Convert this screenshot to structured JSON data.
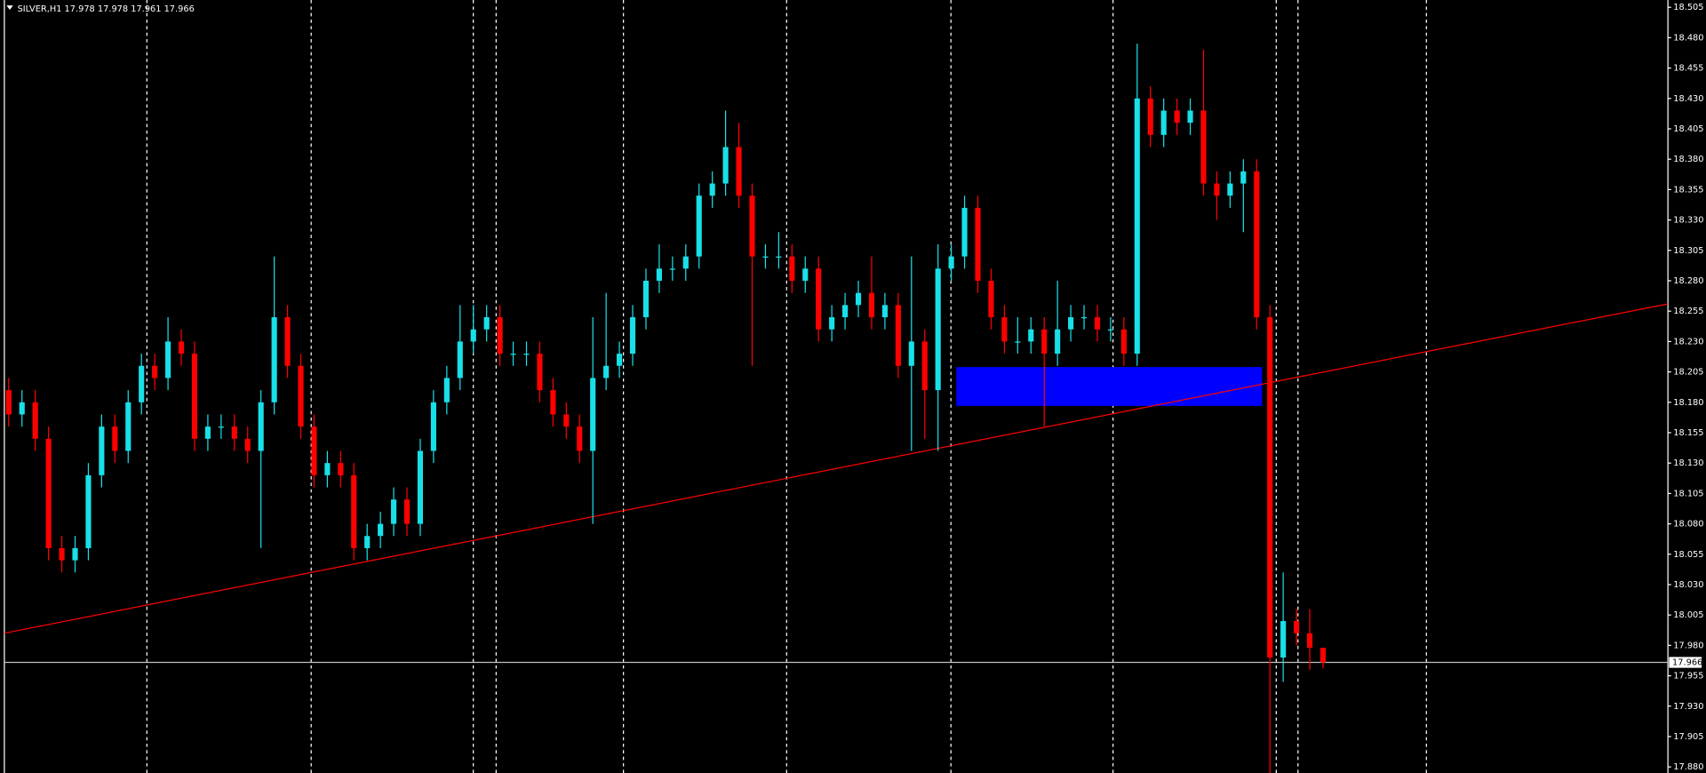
{
  "chart_data": {
    "type": "candlestick",
    "title": "SILVER,H1 17.978 17.978 17.961 17.966",
    "up_color": "#18e0e8",
    "down_color": "#ff0000",
    "grid": true,
    "ylim": [
      17.875,
      18.511
    ],
    "yticks": [
      18.505,
      {
        "value": 18.48,
        "label": "18.480"
      },
      18.455,
      {
        "value": 18.43,
        "label": "18.430"
      },
      18.405,
      {
        "value": 18.38,
        "label": "18.380"
      },
      18.355,
      {
        "value": 18.33,
        "label": "18.330"
      },
      18.305,
      {
        "value": 18.28,
        "label": "18.280"
      },
      18.255,
      {
        "value": 18.23,
        "label": "18.230"
      },
      18.205,
      {
        "value": 18.18,
        "label": "18.180"
      },
      18.155,
      {
        "value": 18.13,
        "label": "18.130"
      },
      18.105,
      {
        "value": 18.08,
        "label": "18.080"
      },
      18.055,
      {
        "value": 18.03,
        "label": "18.030"
      },
      18.005,
      {
        "value": 17.98,
        "label": "17.980"
      },
      17.955,
      {
        "value": 17.93,
        "label": "17.930"
      },
      17.905,
      {
        "value": 17.88,
        "label": "17.880"
      }
    ],
    "open": [
      18.19,
      18.17,
      18.18,
      18.15,
      18.06,
      18.05,
      18.06,
      18.12,
      18.16,
      18.14,
      18.18,
      18.21,
      18.2,
      18.23,
      18.22,
      18.15,
      18.16,
      18.16,
      18.15,
      18.14,
      18.18,
      18.25,
      18.21,
      18.16,
      18.12,
      18.13,
      18.12,
      18.06,
      18.07,
      18.08,
      18.1,
      18.08,
      18.14,
      18.18,
      18.2,
      18.23,
      18.24,
      18.25,
      18.22,
      18.22,
      18.22,
      18.19,
      18.17,
      18.16,
      18.14,
      18.2,
      18.21,
      18.22,
      18.25,
      18.28,
      18.29,
      18.29,
      18.3,
      18.35,
      18.36,
      18.39,
      18.35,
      18.3,
      18.3,
      18.3,
      18.28,
      18.29,
      18.24,
      18.25,
      18.26,
      18.27,
      18.25,
      18.26,
      18.21,
      18.23,
      18.19,
      18.29,
      18.3,
      18.34,
      18.28,
      18.25,
      18.23,
      18.23,
      18.24,
      18.22,
      18.24,
      18.25,
      18.25,
      18.24,
      18.24,
      18.22,
      18.43,
      18.4,
      18.42,
      18.41,
      18.42,
      18.36,
      18.35,
      18.36,
      18.37,
      18.25,
      17.97,
      18.0,
      17.99,
      17.978
    ],
    "high": [
      18.2,
      18.19,
      18.19,
      18.16,
      18.07,
      18.07,
      18.13,
      18.17,
      18.17,
      18.19,
      18.22,
      18.22,
      18.25,
      18.24,
      18.23,
      18.17,
      18.17,
      18.17,
      18.16,
      18.19,
      18.3,
      18.26,
      18.22,
      18.17,
      18.14,
      18.14,
      18.13,
      18.08,
      18.09,
      18.11,
      18.11,
      18.15,
      18.19,
      18.21,
      18.26,
      18.26,
      18.26,
      18.26,
      18.23,
      18.23,
      18.23,
      18.2,
      18.18,
      18.17,
      18.25,
      18.27,
      18.23,
      18.26,
      18.29,
      18.31,
      18.3,
      18.31,
      18.36,
      18.37,
      18.42,
      18.41,
      18.36,
      18.31,
      18.32,
      18.31,
      18.3,
      18.3,
      18.26,
      18.27,
      18.28,
      18.3,
      18.27,
      18.27,
      18.3,
      18.24,
      18.31,
      18.31,
      18.35,
      18.35,
      18.29,
      18.26,
      18.25,
      18.25,
      18.25,
      18.28,
      18.26,
      18.26,
      18.26,
      18.25,
      18.25,
      18.475,
      18.44,
      18.43,
      18.43,
      18.43,
      18.47,
      18.37,
      18.37,
      18.38,
      18.38,
      18.26,
      18.04,
      18.01,
      18.01,
      17.978
    ],
    "low": [
      18.16,
      18.16,
      18.14,
      18.05,
      18.04,
      18.04,
      18.05,
      18.11,
      18.13,
      18.13,
      18.17,
      18.19,
      18.19,
      18.21,
      18.14,
      18.14,
      18.15,
      18.14,
      18.13,
      18.06,
      18.17,
      18.2,
      18.15,
      18.11,
      18.11,
      18.11,
      18.05,
      18.05,
      18.06,
      18.07,
      18.07,
      18.07,
      18.13,
      18.17,
      18.19,
      18.22,
      18.23,
      18.21,
      18.21,
      18.21,
      18.18,
      18.16,
      18.15,
      18.13,
      18.08,
      18.19,
      18.2,
      18.21,
      18.24,
      18.27,
      18.28,
      18.28,
      18.29,
      18.34,
      18.35,
      18.34,
      18.21,
      18.29,
      18.29,
      18.27,
      18.27,
      18.23,
      18.23,
      18.24,
      18.25,
      18.24,
      18.24,
      18.2,
      18.14,
      18.15,
      18.14,
      18.28,
      18.29,
      18.27,
      18.24,
      18.22,
      18.22,
      18.22,
      18.16,
      18.21,
      18.23,
      18.24,
      18.23,
      18.23,
      18.21,
      18.21,
      18.39,
      18.39,
      18.4,
      18.4,
      18.35,
      18.33,
      18.34,
      18.32,
      18.24,
      17.87,
      17.95,
      17.98,
      17.96,
      17.961
    ],
    "close": [
      18.17,
      18.18,
      18.15,
      18.06,
      18.05,
      18.06,
      18.12,
      18.16,
      18.14,
      18.18,
      18.21,
      18.2,
      18.23,
      18.22,
      18.15,
      18.16,
      18.16,
      18.15,
      18.14,
      18.18,
      18.25,
      18.21,
      18.16,
      18.12,
      18.13,
      18.12,
      18.06,
      18.07,
      18.08,
      18.1,
      18.08,
      18.14,
      18.18,
      18.2,
      18.23,
      18.24,
      18.25,
      18.22,
      18.22,
      18.22,
      18.19,
      18.17,
      18.16,
      18.14,
      18.2,
      18.21,
      18.22,
      18.25,
      18.28,
      18.29,
      18.29,
      18.3,
      18.35,
      18.36,
      18.39,
      18.35,
      18.3,
      18.3,
      18.3,
      18.28,
      18.29,
      18.24,
      18.25,
      18.26,
      18.27,
      18.25,
      18.26,
      18.21,
      18.23,
      18.19,
      18.29,
      18.3,
      18.34,
      18.28,
      18.25,
      18.23,
      18.23,
      18.24,
      18.22,
      18.24,
      18.25,
      18.25,
      18.24,
      18.24,
      18.22,
      18.43,
      18.4,
      18.42,
      18.41,
      18.42,
      18.36,
      18.35,
      18.36,
      18.37,
      18.25,
      17.97,
      18.0,
      17.99,
      17.978,
      17.966
    ],
    "last_price": 17.966,
    "last_price_color": "#c0c0c0",
    "trendline": {
      "color": "#ff0000",
      "start": 17.99,
      "end": 18.261
    },
    "zone": {
      "color": "#0000ff",
      "high": 18.209,
      "low": 18.177
    }
  }
}
